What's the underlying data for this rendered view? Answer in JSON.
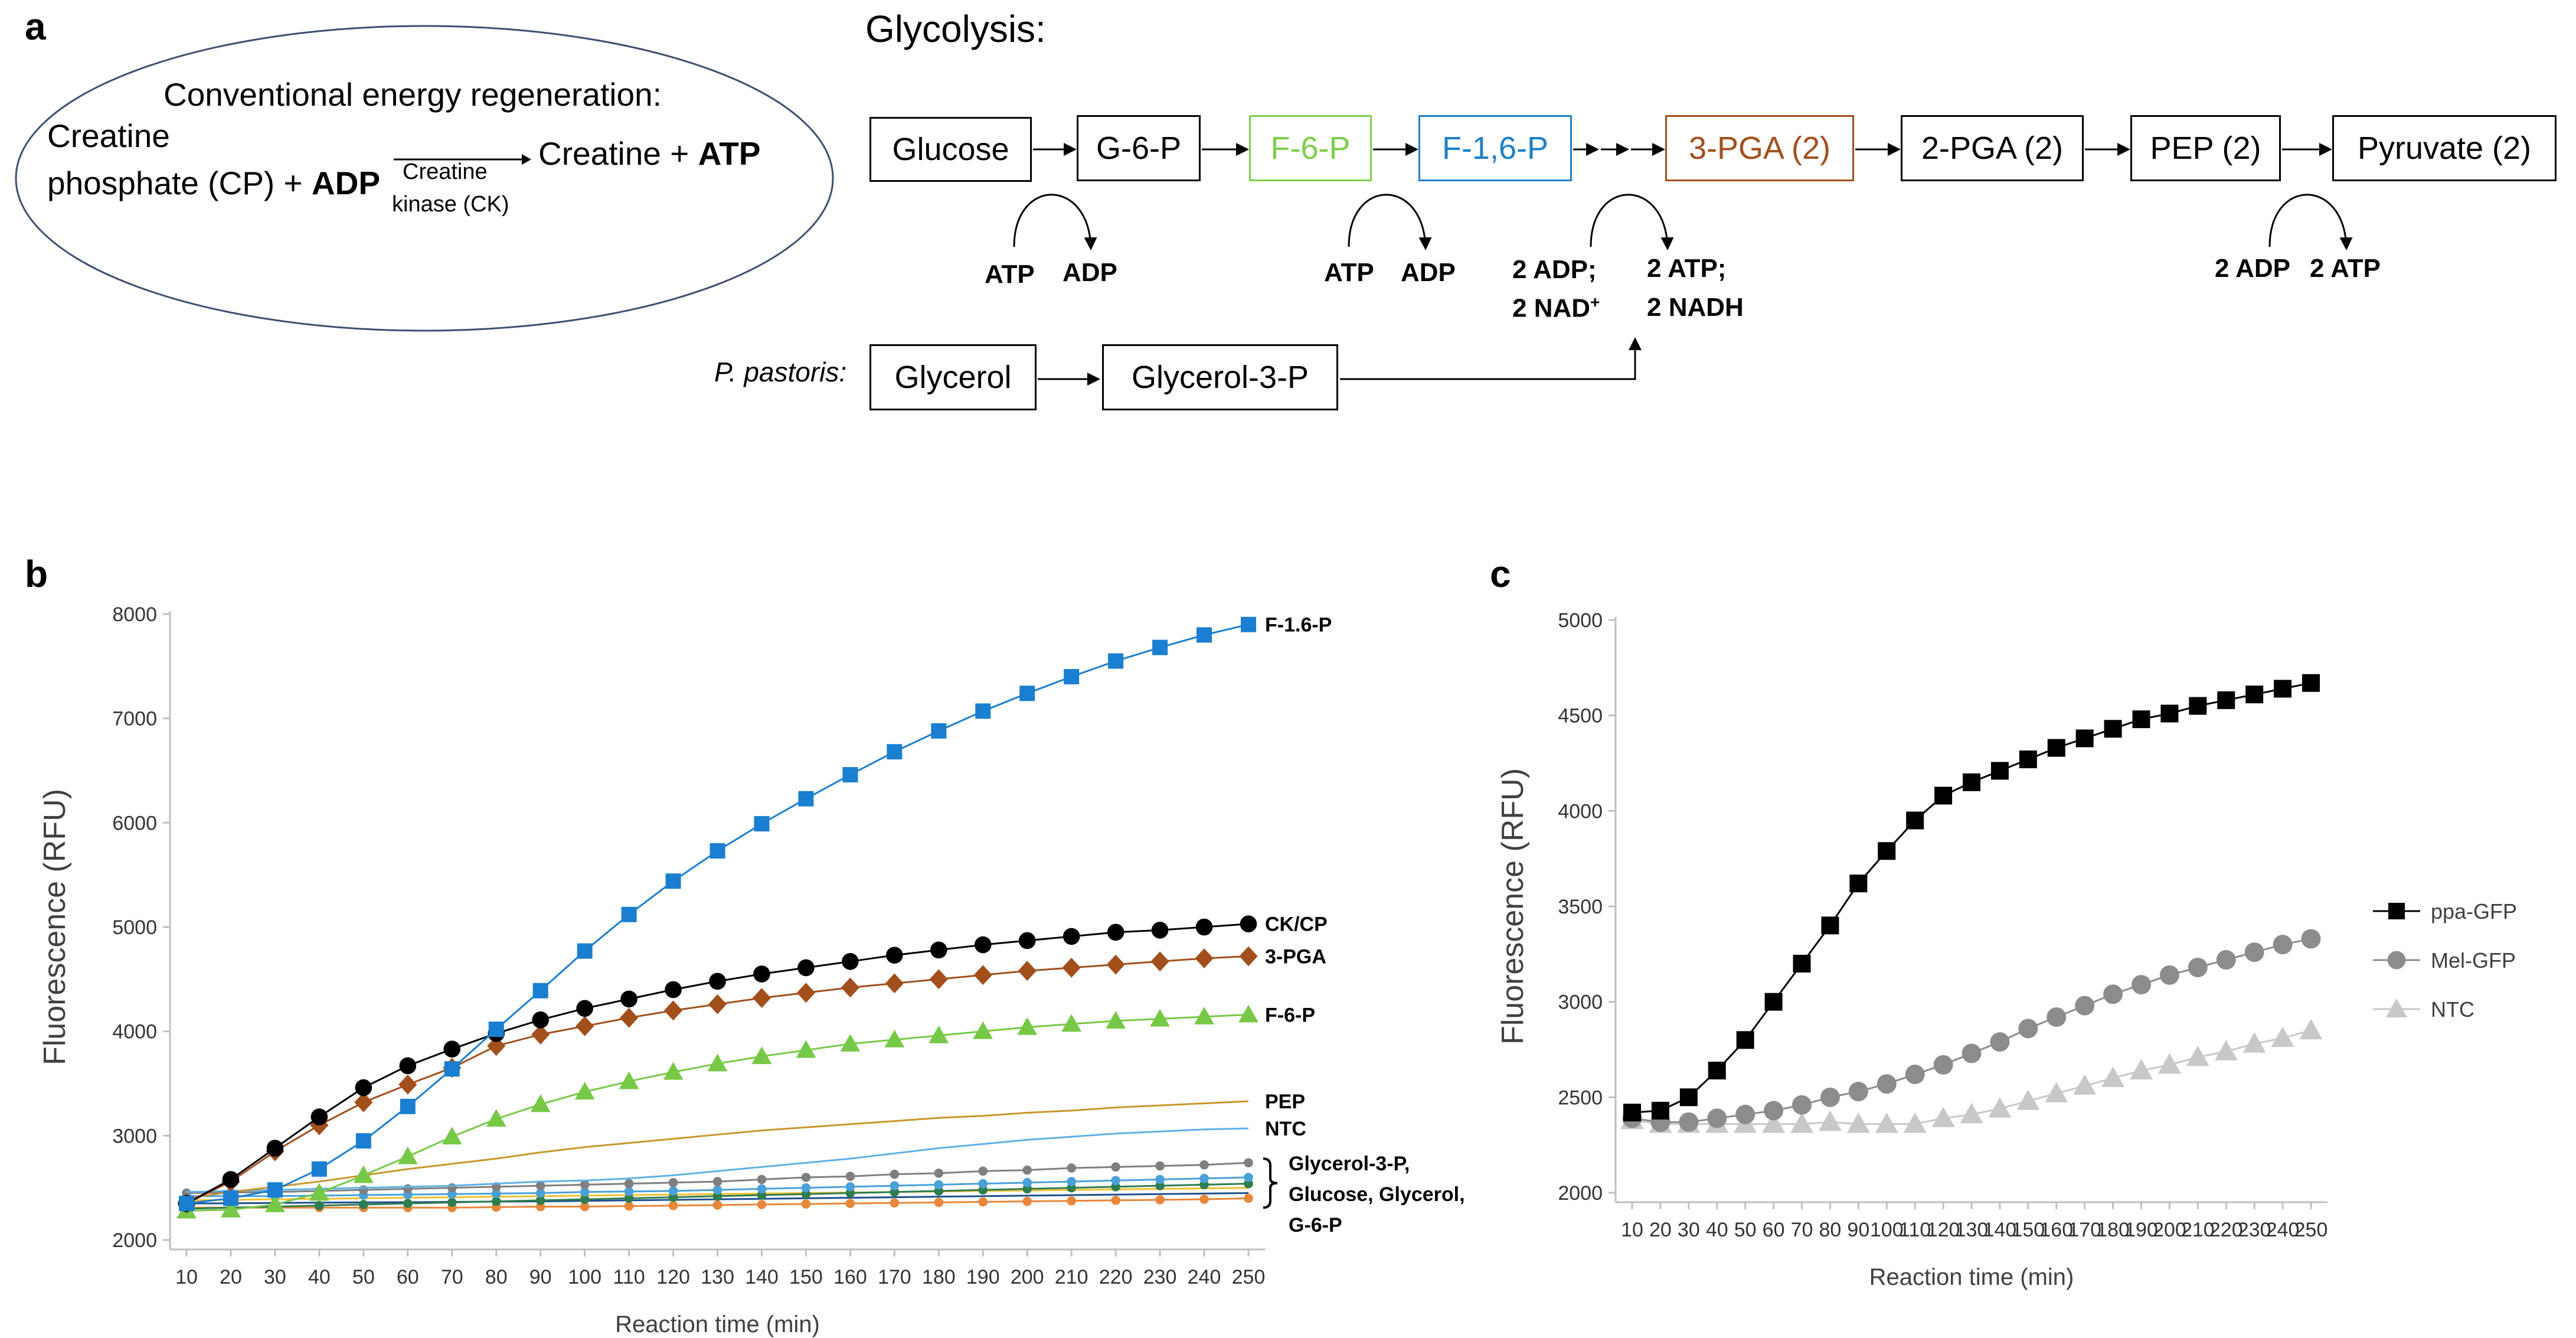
{
  "panel_a": {
    "label": "a",
    "glycolysis_title": "Glycolysis:",
    "energy_regen": {
      "title": "Conventional energy regeneration:",
      "line1": "Creatine",
      "line2_prefix": "phosphate (CP) + ",
      "line2_bold": "ADP",
      "enzyme_line1": "Creatine",
      "enzyme_line2": "kinase (CK)",
      "product_prefix": "Creatine + ",
      "product_bold": "ATP"
    },
    "pathway": [
      {
        "label": "Glucose",
        "color": "#000000"
      },
      {
        "label": "G-6-P",
        "color": "#000000"
      },
      {
        "label": "F-6-P",
        "color": "#7dcf4a"
      },
      {
        "label": "F-1,6-P",
        "color": "#1f7fc8"
      },
      {
        "label": "3-PGA (2)",
        "color": "#a24f1c"
      },
      {
        "label": "2-PGA (2)",
        "color": "#000000"
      },
      {
        "label": "PEP (2)",
        "color": "#000000"
      },
      {
        "label": "Pyruvate (2)",
        "color": "#000000"
      }
    ],
    "cofactors": {
      "c1_in": "ATP",
      "c1_out": "ADP",
      "c2_in": "ATP",
      "c2_out": "ADP",
      "c3_in_1": "2 ADP;",
      "c3_in_2": "2 NAD",
      "c3_in_sup": "+",
      "c3_out_1": "2 ATP;",
      "c3_out_2": "2 NADH",
      "c4_in": "2 ADP",
      "c4_out": "2 ATP"
    },
    "pastoris": {
      "label": "P. pastoris:",
      "glycerol": "Glycerol",
      "glycerol3p": "Glycerol-3-P"
    }
  },
  "chart_data": [
    {
      "panel": "b",
      "type": "line",
      "xlabel": "Reaction time (min)",
      "ylabel": "Fluorescence (RFU)",
      "ylim": [
        2000,
        8000
      ],
      "yticks": [
        2000,
        3000,
        4000,
        5000,
        6000,
        7000,
        8000
      ],
      "x": [
        10,
        20,
        30,
        40,
        50,
        60,
        70,
        80,
        90,
        100,
        110,
        120,
        130,
        140,
        150,
        160,
        170,
        180,
        190,
        200,
        210,
        220,
        230,
        240,
        250
      ],
      "series": [
        {
          "name": "F-1.6-P",
          "color": "#1a7ed1",
          "marker": "square",
          "values": [
            2350,
            2400,
            2480,
            2680,
            2950,
            3280,
            3640,
            4020,
            4390,
            4770,
            5120,
            5440,
            5730,
            5990,
            6230,
            6460,
            6680,
            6880,
            7070,
            7240,
            7400,
            7550,
            7680,
            7800,
            7900
          ]
        },
        {
          "name": "CK/CP",
          "color": "#000000",
          "marker": "circle",
          "values": [
            2350,
            2580,
            2880,
            3180,
            3460,
            3670,
            3830,
            3980,
            4110,
            4220,
            4310,
            4400,
            4480,
            4550,
            4610,
            4670,
            4730,
            4780,
            4830,
            4870,
            4910,
            4950,
            4970,
            5000,
            5030
          ]
        },
        {
          "name": "3-PGA",
          "color": "#a24f1c",
          "marker": "diamond",
          "values": [
            2350,
            2560,
            2850,
            3100,
            3320,
            3490,
            3650,
            3860,
            3970,
            4050,
            4130,
            4200,
            4260,
            4320,
            4370,
            4420,
            4460,
            4500,
            4540,
            4580,
            4610,
            4640,
            4670,
            4700,
            4720
          ]
        },
        {
          "name": "F-6-P",
          "color": "#76c946",
          "marker": "triangle",
          "values": [
            2280,
            2290,
            2340,
            2450,
            2620,
            2800,
            2990,
            3160,
            3300,
            3420,
            3520,
            3610,
            3690,
            3760,
            3820,
            3880,
            3920,
            3960,
            4000,
            4040,
            4070,
            4100,
            4120,
            4140,
            4160
          ]
        },
        {
          "name": "PEP",
          "color": "#c8962c",
          "marker": "none",
          "values": [
            2400,
            2460,
            2510,
            2560,
            2620,
            2680,
            2730,
            2780,
            2840,
            2890,
            2930,
            2970,
            3010,
            3050,
            3080,
            3110,
            3140,
            3170,
            3190,
            3220,
            3240,
            3270,
            3290,
            3310,
            3330
          ]
        },
        {
          "name": "NTC",
          "color": "#5fb0e6",
          "marker": "none",
          "values": [
            2460,
            2470,
            2480,
            2490,
            2500,
            2510,
            2520,
            2540,
            2560,
            2570,
            2590,
            2620,
            2660,
            2700,
            2740,
            2780,
            2830,
            2880,
            2920,
            2960,
            2990,
            3020,
            3040,
            3060,
            3070
          ]
        },
        {
          "name": "Glycerol-3-P",
          "color": "#7f7f7f",
          "marker": "circle-small",
          "values": [
            2450,
            2455,
            2460,
            2470,
            2480,
            2490,
            2500,
            2510,
            2520,
            2530,
            2540,
            2550,
            2560,
            2580,
            2600,
            2610,
            2630,
            2640,
            2660,
            2670,
            2690,
            2700,
            2710,
            2720,
            2740
          ]
        },
        {
          "name": "Glucose",
          "color": "#4aa0d8",
          "marker": "circle-small",
          "values": [
            2420,
            2420,
            2420,
            2425,
            2430,
            2435,
            2440,
            2445,
            2450,
            2460,
            2465,
            2470,
            2480,
            2490,
            2500,
            2510,
            2520,
            2530,
            2540,
            2550,
            2560,
            2570,
            2580,
            2590,
            2600
          ]
        },
        {
          "name": "Glycerol",
          "color": "#2e7d4f",
          "marker": "circle-small",
          "values": [
            2300,
            2310,
            2320,
            2330,
            2340,
            2350,
            2360,
            2370,
            2380,
            2390,
            2400,
            2410,
            2420,
            2430,
            2440,
            2450,
            2460,
            2470,
            2480,
            2490,
            2500,
            2510,
            2520,
            2530,
            2540
          ]
        },
        {
          "name": "G-6-P",
          "color": "#e8873a",
          "marker": "circle-small",
          "values": [
            2310,
            2310,
            2310,
            2310,
            2310,
            2310,
            2310,
            2315,
            2320,
            2320,
            2325,
            2330,
            2335,
            2340,
            2345,
            2350,
            2355,
            2360,
            2365,
            2370,
            2375,
            2380,
            2385,
            2390,
            2400
          ]
        },
        {
          "name": "",
          "color": "#f0c030",
          "marker": "none",
          "values": [
            2380,
            2385,
            2390,
            2395,
            2400,
            2405,
            2410,
            2415,
            2420,
            2425,
            2430,
            2435,
            2440,
            2445,
            2450,
            2455,
            2460,
            2465,
            2470,
            2475,
            2480,
            2485,
            2490,
            2495,
            2500
          ]
        },
        {
          "name": "",
          "color": "#1f4f8f",
          "marker": "none",
          "values": [
            2350,
            2352,
            2355,
            2358,
            2360,
            2362,
            2365,
            2368,
            2370,
            2375,
            2380,
            2385,
            2390,
            2395,
            2400,
            2405,
            2410,
            2415,
            2420,
            2425,
            2430,
            2435,
            2440,
            2445,
            2450
          ]
        }
      ],
      "line_labels": {
        "f16p": "F-1.6-P",
        "ckcp": "CK/CP",
        "pga": "3-PGA",
        "f6p": "F-6-P",
        "pep": "PEP",
        "ntc": "NTC",
        "group_1": "Glycerol-3-P,",
        "group_2": "Glucose, Glycerol,",
        "group_3": "G-6-P"
      }
    },
    {
      "panel": "c",
      "type": "line",
      "xlabel": "Reaction time (min)",
      "ylabel": "Fluorescence (RFU)",
      "ylim": [
        2000,
        5000
      ],
      "yticks": [
        2000,
        2500,
        3000,
        3500,
        4000,
        4500,
        5000
      ],
      "x": [
        10,
        20,
        30,
        40,
        50,
        60,
        70,
        80,
        90,
        100,
        110,
        120,
        130,
        140,
        150,
        160,
        170,
        180,
        190,
        200,
        210,
        220,
        230,
        240,
        250
      ],
      "series": [
        {
          "name": "ppa-GFP",
          "color": "#000000",
          "marker": "square",
          "values": [
            2420,
            2430,
            2500,
            2640,
            2800,
            3000,
            3200,
            3400,
            3620,
            3790,
            3950,
            4080,
            4150,
            4210,
            4270,
            4330,
            4380,
            4430,
            4480,
            4510,
            4550,
            4580,
            4610,
            4640,
            4670
          ]
        },
        {
          "name": "Mel-GFP",
          "color": "#8c8c8c",
          "marker": "circle",
          "values": [
            2390,
            2370,
            2370,
            2390,
            2410,
            2430,
            2460,
            2500,
            2530,
            2570,
            2620,
            2670,
            2730,
            2790,
            2860,
            2920,
            2980,
            3040,
            3090,
            3140,
            3180,
            3220,
            3260,
            3300,
            3330
          ]
        },
        {
          "name": "NTC",
          "color": "#c8c8c8",
          "marker": "triangle",
          "values": [
            2380,
            2360,
            2360,
            2360,
            2360,
            2360,
            2360,
            2370,
            2360,
            2360,
            2360,
            2390,
            2410,
            2440,
            2480,
            2520,
            2560,
            2600,
            2640,
            2670,
            2710,
            2740,
            2780,
            2810,
            2850
          ]
        }
      ]
    }
  ]
}
